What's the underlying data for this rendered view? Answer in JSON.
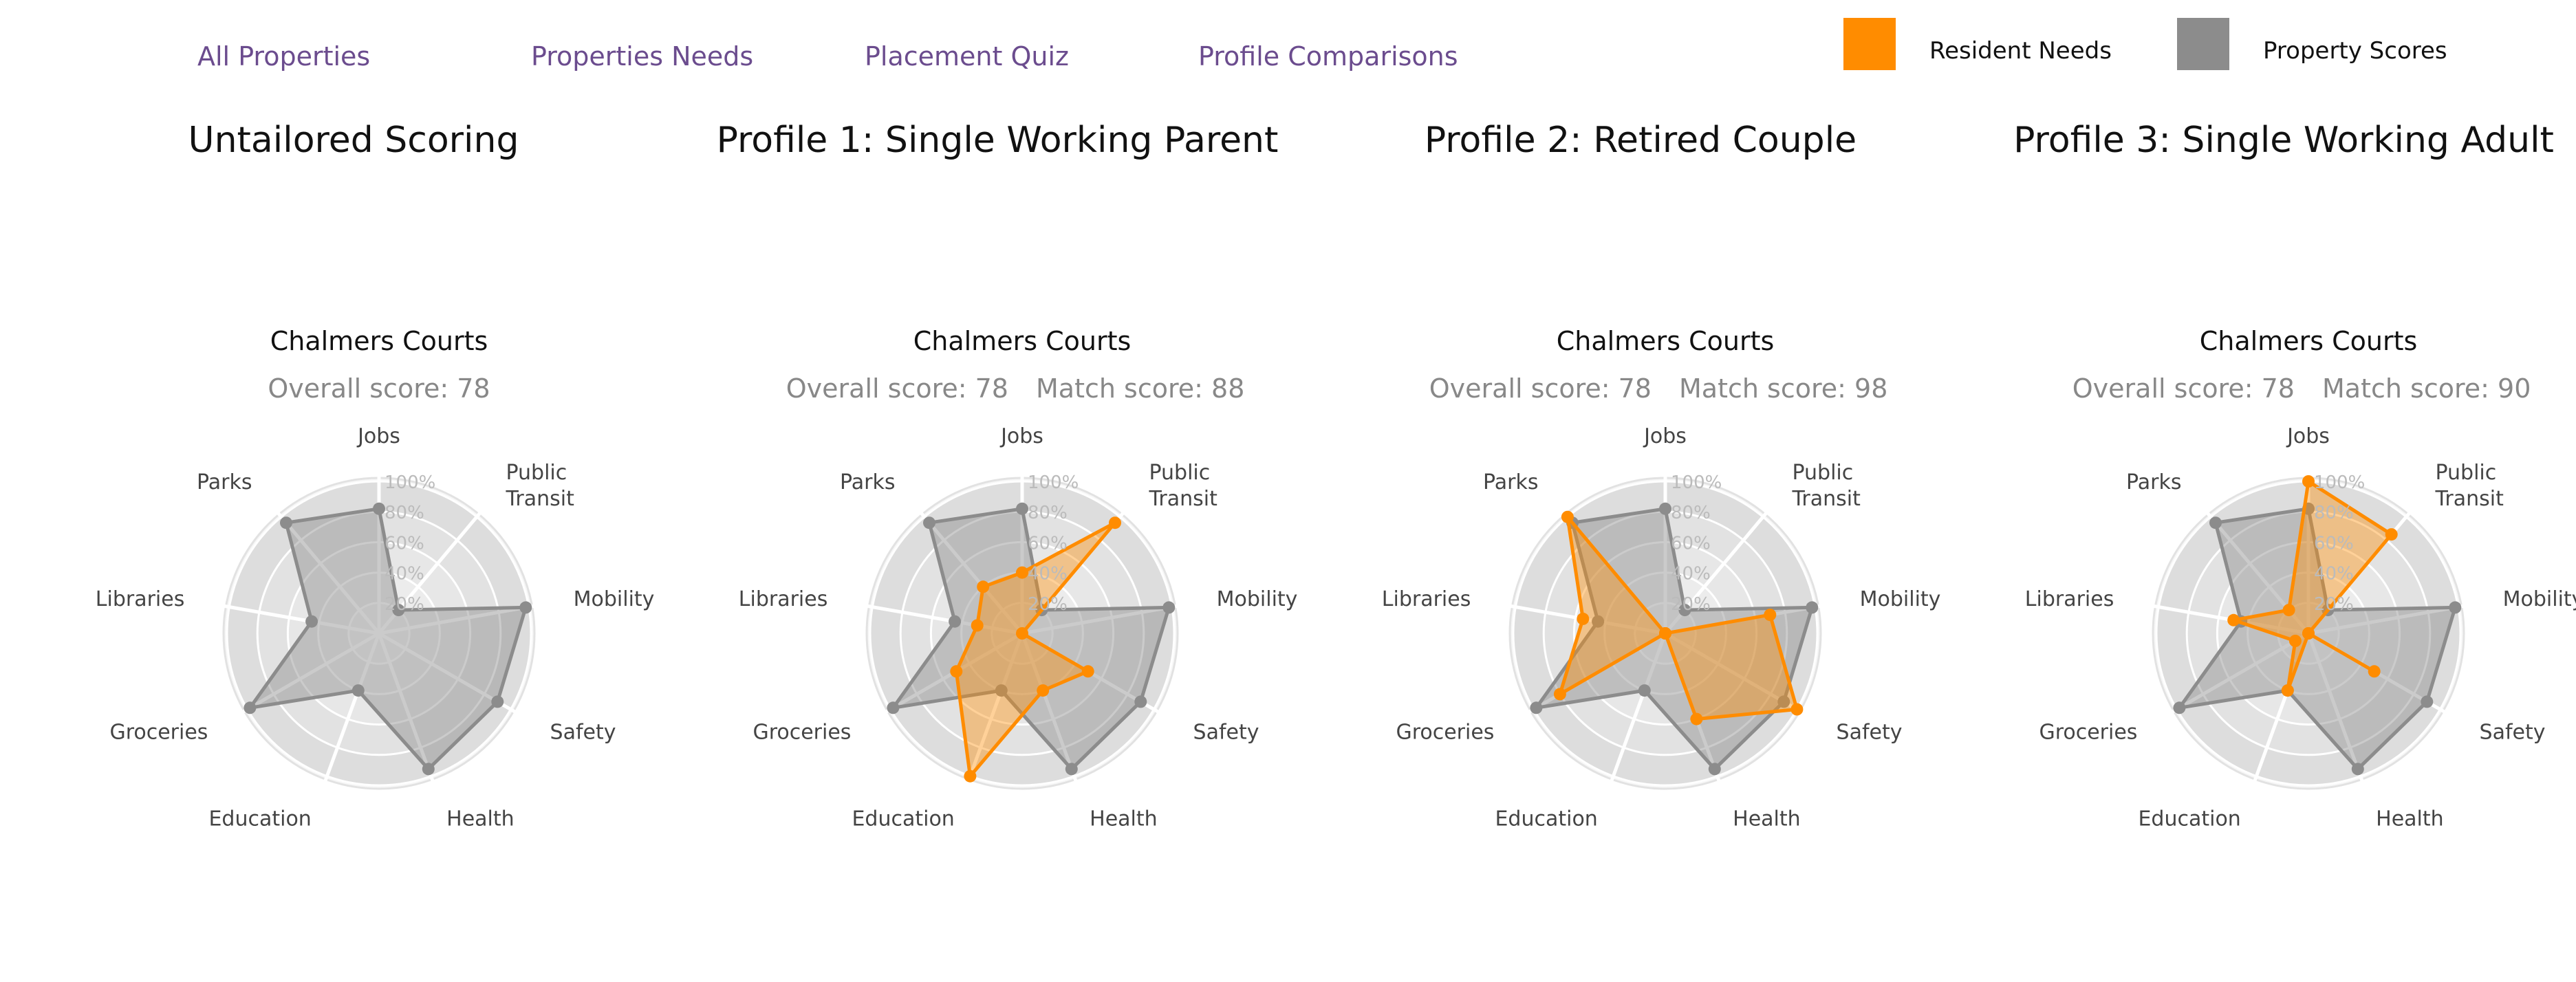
{
  "nav": {
    "items": [
      {
        "label": "All Properties"
      },
      {
        "label": "Properties Needs"
      },
      {
        "label": "Placement Quiz"
      },
      {
        "label": "Profile Comparisons"
      }
    ]
  },
  "legend": {
    "items": [
      {
        "label": "Resident Needs",
        "color": "#ff8c00"
      },
      {
        "label": "Property Scores",
        "color": "#8c8c8c"
      }
    ]
  },
  "profiles": [
    {
      "title": "Untailored Scoring"
    },
    {
      "title": "Profile 1: Single Working Parent"
    },
    {
      "title": "Profile 2: Retired Couple"
    },
    {
      "title": "Profile 3: Single Working Adult"
    }
  ],
  "chart_data": [
    {
      "type": "radar",
      "title": "Chalmers Courts",
      "overall_score_label": "Overall score: 78",
      "match_score_label": "",
      "axes": [
        "Jobs",
        "Public Transit",
        "Mobility",
        "Safety",
        "Health",
        "Education",
        "Groceries",
        "Libraries",
        "Parks"
      ],
      "ticks": [
        "20%",
        "40%",
        "60%",
        "80%",
        "100%"
      ],
      "rlim": [
        0,
        100
      ],
      "series": [
        {
          "name": "Property Scores",
          "color": "#8c8c8c",
          "values": [
            82,
            20,
            98,
            90,
            95,
            40,
            98,
            45,
            95
          ]
        }
      ]
    },
    {
      "type": "radar",
      "title": "Chalmers Courts",
      "overall_score_label": "Overall score: 78",
      "match_score_label": "Match score: 88",
      "axes": [
        "Jobs",
        "Public Transit",
        "Mobility",
        "Safety",
        "Health",
        "Education",
        "Groceries",
        "Libraries",
        "Parks"
      ],
      "ticks": [
        "20%",
        "40%",
        "60%",
        "80%",
        "100%"
      ],
      "rlim": [
        0,
        100
      ],
      "series": [
        {
          "name": "Property Scores",
          "color": "#8c8c8c",
          "values": [
            82,
            20,
            98,
            90,
            95,
            40,
            98,
            45,
            95
          ]
        },
        {
          "name": "Resident Needs",
          "color": "#ff8c00",
          "values": [
            40,
            95,
            0,
            50,
            40,
            100,
            50,
            30,
            40
          ]
        }
      ]
    },
    {
      "type": "radar",
      "title": "Chalmers Courts",
      "overall_score_label": "Overall score: 78",
      "match_score_label": "Match score: 98",
      "axes": [
        "Jobs",
        "Public Transit",
        "Mobility",
        "Safety",
        "Health",
        "Education",
        "Groceries",
        "Libraries",
        "Parks"
      ],
      "ticks": [
        "20%",
        "40%",
        "60%",
        "80%",
        "100%"
      ],
      "rlim": [
        0,
        100
      ],
      "series": [
        {
          "name": "Property Scores",
          "color": "#8c8c8c",
          "values": [
            82,
            20,
            98,
            90,
            95,
            40,
            98,
            45,
            95
          ]
        },
        {
          "name": "Resident Needs",
          "color": "#ff8c00",
          "values": [
            0,
            0,
            70,
            100,
            60,
            0,
            80,
            55,
            100
          ]
        }
      ]
    },
    {
      "type": "radar",
      "title": "Chalmers Courts",
      "overall_score_label": "Overall score: 78",
      "match_score_label": "Match score: 90",
      "axes": [
        "Jobs",
        "Public Transit",
        "Mobility",
        "Safety",
        "Health",
        "Education",
        "Groceries",
        "Libraries",
        "Parks"
      ],
      "ticks": [
        "20%",
        "40%",
        "60%",
        "80%",
        "100%"
      ],
      "rlim": [
        0,
        100
      ],
      "series": [
        {
          "name": "Property Scores",
          "color": "#8c8c8c",
          "values": [
            82,
            20,
            98,
            90,
            95,
            40,
            98,
            45,
            95
          ]
        },
        {
          "name": "Resident Needs",
          "color": "#ff8c00",
          "values": [
            100,
            85,
            0,
            50,
            0,
            40,
            10,
            50,
            20
          ]
        }
      ]
    }
  ]
}
